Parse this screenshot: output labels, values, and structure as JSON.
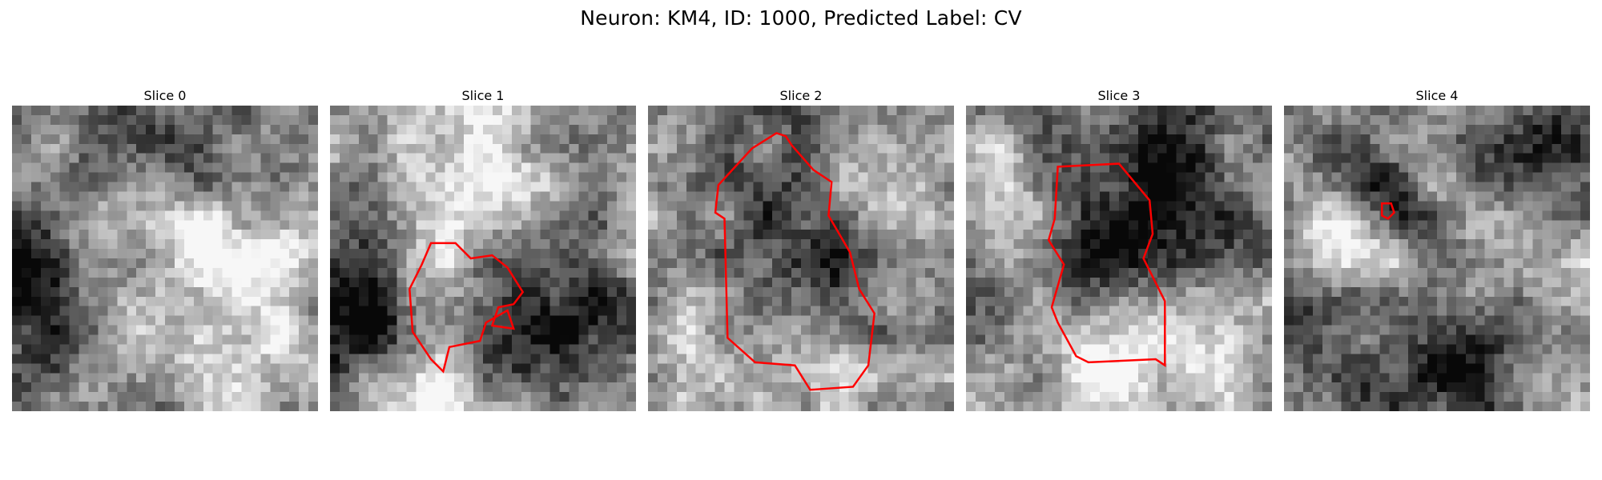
{
  "figure": {
    "title": "Neuron: KM4, ID: 1000, Predicted Label: CV"
  },
  "panels": [
    {
      "title": "Slice 0",
      "seed": 11,
      "blobs": [
        [
          0.08,
          0.62,
          -0.45,
          0.16
        ],
        [
          0.7,
          0.45,
          0.35,
          0.16
        ],
        [
          0.55,
          0.1,
          -0.3,
          0.14
        ],
        [
          0.35,
          0.75,
          0.2,
          0.18
        ],
        [
          0.85,
          0.85,
          0.25,
          0.2
        ]
      ],
      "outline": []
    },
    {
      "title": "Slice 1",
      "seed": 23,
      "blobs": [
        [
          0.4,
          0.18,
          0.35,
          0.2
        ],
        [
          0.15,
          0.7,
          -0.5,
          0.15
        ],
        [
          0.8,
          0.68,
          -0.4,
          0.15
        ],
        [
          0.33,
          0.63,
          0.35,
          0.1
        ],
        [
          0.3,
          0.95,
          0.4,
          0.12
        ],
        [
          0.6,
          0.62,
          -0.25,
          0.1
        ]
      ],
      "outline": [
        [
          0.33,
          0.45
        ],
        [
          0.41,
          0.45
        ],
        [
          0.46,
          0.5
        ],
        [
          0.53,
          0.49
        ],
        [
          0.58,
          0.53
        ],
        [
          0.63,
          0.61
        ],
        [
          0.6,
          0.65
        ],
        [
          0.55,
          0.66
        ],
        [
          0.53,
          0.72
        ],
        [
          0.6,
          0.73
        ],
        [
          0.58,
          0.67
        ],
        [
          0.51,
          0.71
        ],
        [
          0.49,
          0.77
        ],
        [
          0.39,
          0.79
        ],
        [
          0.37,
          0.87
        ],
        [
          0.33,
          0.83
        ],
        [
          0.27,
          0.74
        ],
        [
          0.26,
          0.6
        ],
        [
          0.3,
          0.52
        ]
      ]
    },
    {
      "title": "Slice 2",
      "seed": 37,
      "blobs": [
        [
          0.5,
          0.5,
          -0.35,
          0.22
        ],
        [
          0.5,
          0.82,
          0.35,
          0.14
        ],
        [
          0.75,
          0.3,
          0.25,
          0.15
        ],
        [
          0.15,
          0.8,
          0.2,
          0.15
        ]
      ],
      "outline": [
        [
          0.42,
          0.09
        ],
        [
          0.45,
          0.1
        ],
        [
          0.47,
          0.13
        ],
        [
          0.54,
          0.21
        ],
        [
          0.6,
          0.25
        ],
        [
          0.59,
          0.36
        ],
        [
          0.66,
          0.48
        ],
        [
          0.69,
          0.6
        ],
        [
          0.74,
          0.68
        ],
        [
          0.72,
          0.85
        ],
        [
          0.67,
          0.92
        ],
        [
          0.53,
          0.93
        ],
        [
          0.48,
          0.85
        ],
        [
          0.35,
          0.84
        ],
        [
          0.26,
          0.76
        ],
        [
          0.25,
          0.37
        ],
        [
          0.22,
          0.35
        ],
        [
          0.23,
          0.26
        ],
        [
          0.34,
          0.14
        ]
      ]
    },
    {
      "title": "Slice 3",
      "seed": 53,
      "blobs": [
        [
          0.6,
          0.3,
          -0.45,
          0.2
        ],
        [
          0.5,
          0.78,
          0.45,
          0.15
        ],
        [
          0.1,
          0.3,
          0.3,
          0.15
        ],
        [
          0.35,
          0.5,
          -0.25,
          0.12
        ],
        [
          0.85,
          0.82,
          0.3,
          0.12
        ]
      ],
      "outline": [
        [
          0.3,
          0.2
        ],
        [
          0.5,
          0.19
        ],
        [
          0.6,
          0.31
        ],
        [
          0.61,
          0.42
        ],
        [
          0.58,
          0.5
        ],
        [
          0.65,
          0.64
        ],
        [
          0.65,
          0.85
        ],
        [
          0.62,
          0.83
        ],
        [
          0.4,
          0.84
        ],
        [
          0.36,
          0.82
        ],
        [
          0.3,
          0.71
        ],
        [
          0.28,
          0.66
        ],
        [
          0.32,
          0.52
        ],
        [
          0.27,
          0.44
        ],
        [
          0.29,
          0.37
        ]
      ]
    },
    {
      "title": "Slice 4",
      "seed": 71,
      "blobs": [
        [
          0.3,
          0.27,
          -0.5,
          0.1
        ],
        [
          0.85,
          0.12,
          -0.5,
          0.15
        ],
        [
          0.5,
          0.85,
          -0.4,
          0.18
        ],
        [
          0.2,
          0.45,
          0.3,
          0.12
        ],
        [
          0.8,
          0.45,
          0.25,
          0.15
        ],
        [
          0.1,
          0.75,
          -0.3,
          0.1
        ]
      ],
      "outline": [
        [
          0.32,
          0.32
        ],
        [
          0.35,
          0.32
        ],
        [
          0.36,
          0.35
        ],
        [
          0.34,
          0.37
        ],
        [
          0.32,
          0.36
        ]
      ]
    }
  ]
}
